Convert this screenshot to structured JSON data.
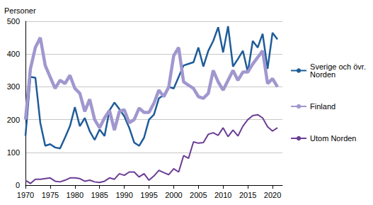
{
  "chart_data": {
    "type": "line",
    "ylabel": "Personer",
    "x": [
      1970,
      1971,
      1972,
      1973,
      1974,
      1975,
      1976,
      1977,
      1978,
      1979,
      1980,
      1981,
      1982,
      1983,
      1984,
      1985,
      1986,
      1987,
      1988,
      1989,
      1990,
      1991,
      1992,
      1993,
      1994,
      1995,
      1996,
      1997,
      1998,
      1999,
      2000,
      2001,
      2002,
      2003,
      2004,
      2005,
      2006,
      2007,
      2008,
      2009,
      2010,
      2011,
      2012,
      2013,
      2014,
      2015,
      2016,
      2017,
      2018,
      2019,
      2020,
      2021
    ],
    "series": [
      {
        "name": "Sverige och övr. Norden",
        "color": "#1f5c99",
        "values": [
          150,
          330,
          328,
          190,
          120,
          125,
          115,
          112,
          145,
          180,
          238,
          180,
          205,
          165,
          138,
          170,
          150,
          228,
          252,
          232,
          210,
          175,
          130,
          120,
          145,
          200,
          215,
          265,
          275,
          300,
          295,
          330,
          365,
          370,
          375,
          420,
          362,
          410,
          440,
          482,
          405,
          485,
          362,
          385,
          410,
          345,
          440,
          420,
          462,
          355,
          465,
          445
        ]
      },
      {
        "name": "Finland",
        "color": "#a197cf",
        "values": [
          200,
          355,
          420,
          450,
          365,
          330,
          295,
          320,
          310,
          335,
          295,
          280,
          225,
          262,
          200,
          175,
          205,
          228,
          168,
          225,
          230,
          190,
          200,
          235,
          222,
          222,
          250,
          290,
          270,
          300,
          395,
          420,
          315,
          305,
          295,
          270,
          265,
          280,
          350,
          315,
          290,
          320,
          350,
          320,
          345,
          345,
          370,
          390,
          410,
          310,
          325,
          300
        ]
      },
      {
        "name": "Utom Norden",
        "color": "#6b3d94",
        "values": [
          15,
          5,
          18,
          18,
          20,
          22,
          12,
          10,
          15,
          22,
          22,
          20,
          12,
          15,
          10,
          8,
          12,
          22,
          18,
          35,
          30,
          40,
          40,
          25,
          35,
          15,
          28,
          45,
          38,
          32,
          50,
          40,
          90,
          82,
          132,
          128,
          130,
          155,
          160,
          152,
          175,
          148,
          168,
          150,
          180,
          200,
          212,
          215,
          205,
          178,
          165,
          175
        ]
      }
    ],
    "xlim": [
      1970,
      2022
    ],
    "xticks": [
      1970,
      1975,
      1980,
      1985,
      1990,
      1995,
      2000,
      2005,
      2010,
      2015,
      2020
    ],
    "ylim": [
      0,
      500
    ],
    "yticks": [
      0,
      100,
      200,
      300,
      400,
      500
    ],
    "grid": true,
    "legend": "right"
  }
}
